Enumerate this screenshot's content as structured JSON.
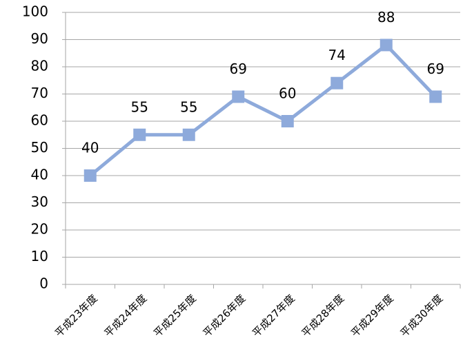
{
  "chart_data": {
    "type": "line",
    "categories": [
      "平成23年度",
      "平成24年度",
      "平成25年度",
      "平成26年度",
      "平成27年度",
      "平成28年度",
      "平成29年度",
      "平成30年度"
    ],
    "series": [
      {
        "color": "#8eaadb",
        "values": [
          40,
          55,
          55,
          69,
          60,
          74,
          88,
          69
        ]
      }
    ],
    "ylim": [
      0,
      100
    ],
    "yticks": [
      0,
      10,
      20,
      30,
      40,
      50,
      60,
      70,
      80,
      90,
      100
    ],
    "grid": true
  }
}
